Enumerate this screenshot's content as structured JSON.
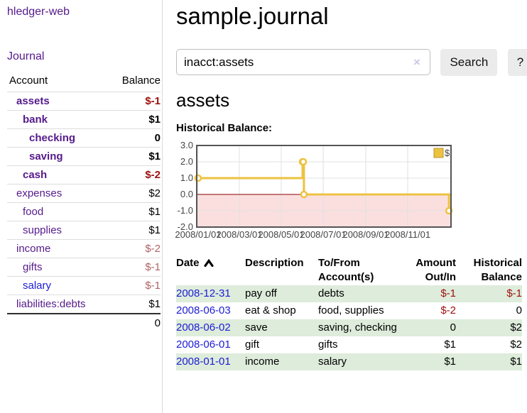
{
  "colors": {
    "link_purple": "#551a8b",
    "link_blue": "#1c1cd6",
    "negative_strong": "#a01010",
    "negative_soft": "#b06363",
    "row_green": "#deecdb",
    "chart_line": "#edc240",
    "chart_line_border": "#b8952f",
    "zero_line": "#8b0000",
    "negative_region": "#fbdfdf",
    "grid": "#e0e0e0",
    "chart_border": "#545454",
    "button_bg": "#ebebeb",
    "clear_icon": "#cfc8e6"
  },
  "sidebar": {
    "app_title": "hledger-web",
    "nav": {
      "journal_label": "Journal"
    },
    "accounts_table": {
      "headers": {
        "account": "Account",
        "balance": "Balance"
      },
      "rows": [
        {
          "account": "assets",
          "balance": "$-1",
          "indent": 1,
          "bold": true,
          "balance_style": "negative_strong"
        },
        {
          "account": "bank",
          "balance": "$1",
          "indent": 2,
          "bold": true,
          "balance_style": "normal"
        },
        {
          "account": "checking",
          "balance": "0",
          "indent": 3,
          "bold": true,
          "balance_style": "normal"
        },
        {
          "account": "saving",
          "balance": "$1",
          "indent": 3,
          "bold": true,
          "balance_style": "normal"
        },
        {
          "account": "cash",
          "balance": "$-2",
          "indent": 2,
          "bold": true,
          "balance_style": "negative_strong"
        },
        {
          "account": "expenses",
          "balance": "$2",
          "indent": 1,
          "bold": false,
          "balance_style": "normal"
        },
        {
          "account": "food",
          "balance": "$1",
          "indent": 2,
          "bold": false,
          "balance_style": "normal"
        },
        {
          "account": "supplies",
          "balance": "$1",
          "indent": 2,
          "bold": false,
          "balance_style": "normal"
        },
        {
          "account": "income",
          "balance": "$-2",
          "indent": 1,
          "bold": false,
          "balance_style": "negative_soft"
        },
        {
          "account": "gifts",
          "balance": "$-1",
          "indent": 2,
          "bold": false,
          "balance_style": "negative_soft"
        },
        {
          "account": "salary",
          "balance": "$-1",
          "indent": 2,
          "bold": false,
          "balance_style": "negative_soft",
          "link_style": "blue"
        },
        {
          "account": "liabilities:debts",
          "balance": "$1",
          "indent": 1,
          "bold": false,
          "balance_style": "normal"
        }
      ],
      "total": "0"
    }
  },
  "main": {
    "page_title": "sample.journal",
    "search": {
      "value": "inacct:assets",
      "clear_label": "×",
      "button_label": "Search",
      "help_label": "?"
    },
    "section_heading": "assets",
    "chart_title": "Historical Balance:"
  },
  "chart_data": {
    "type": "line",
    "step": true,
    "title": "Historical Balance",
    "series": [
      {
        "name": "$",
        "color": "#edc240",
        "points": [
          [
            "2008-01-01",
            1
          ],
          [
            "2008-06-01",
            2
          ],
          [
            "2008-06-02",
            2
          ],
          [
            "2008-06-03",
            0
          ],
          [
            "2008-12-31",
            -1
          ]
        ]
      }
    ],
    "x_tick_labels": [
      "2008/01/01",
      "2008/03/01",
      "2008/05/01",
      "2008/07/01",
      "2008/09/01",
      "2008/11/01"
    ],
    "y_tick_labels": [
      "3.0",
      "2.0",
      "1.0",
      "0.0",
      "-1.0",
      "-2.0"
    ],
    "y_ticks": [
      3,
      2,
      1,
      0,
      -1,
      -2
    ],
    "ylim": [
      -2,
      3
    ],
    "x_domain_days": [
      -2,
      368
    ],
    "grid": true,
    "negative_region": true,
    "zero_line": true,
    "legend": {
      "label": "$",
      "position": "top-right"
    }
  },
  "register": {
    "headers": {
      "date": "Date",
      "description": "Description",
      "account": "To/From Account(s)",
      "amount": "Amount Out/In",
      "balance": "Historical Balance"
    },
    "sort": {
      "column": "date",
      "direction": "asc"
    },
    "rows": [
      {
        "date": "2008-12-31",
        "description": "pay off",
        "account": "debts",
        "amount": "$-1",
        "balance": "$-1",
        "amount_negative": true,
        "balance_negative": true
      },
      {
        "date": "2008-06-03",
        "description": "eat & shop",
        "account": "food, supplies",
        "amount": "$-2",
        "balance": "0",
        "amount_negative": true,
        "balance_negative": false
      },
      {
        "date": "2008-06-02",
        "description": "save",
        "account": "saving, checking",
        "amount": "0",
        "balance": "$2",
        "amount_negative": false,
        "balance_negative": false
      },
      {
        "date": "2008-06-01",
        "description": "gift",
        "account": "gifts",
        "amount": "$1",
        "balance": "$2",
        "amount_negative": false,
        "balance_negative": false
      },
      {
        "date": "2008-01-01",
        "description": "income",
        "account": "salary",
        "amount": "$1",
        "balance": "$1",
        "amount_negative": false,
        "balance_negative": false
      }
    ]
  }
}
